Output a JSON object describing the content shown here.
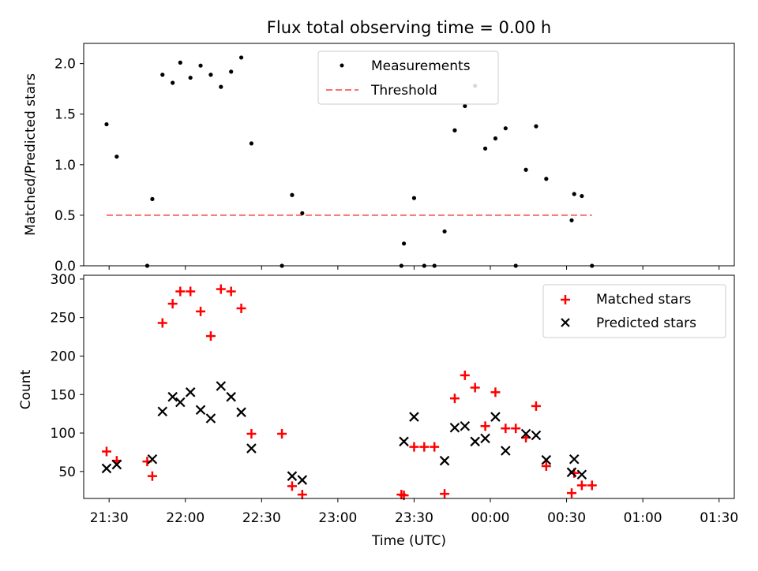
{
  "chart_data": [
    {
      "type": "scatter",
      "title": "Flux total observing time = 0.00 h",
      "ylabel": "Matched/Predicted stars",
      "xlabel": "",
      "xlim": [
        "21:20",
        "01:36"
      ],
      "ylim": [
        0,
        2.2
      ],
      "yticks": [
        0.0,
        0.5,
        1.0,
        1.5,
        2.0
      ],
      "ytick_labels": [
        "0.0",
        "0.5",
        "1.0",
        "1.5",
        "2.0"
      ],
      "legend": "top-center",
      "series": [
        {
          "name": "Measurements",
          "marker": "dot",
          "color": "#000000",
          "points": [
            [
              "21:29",
              1.4
            ],
            [
              "21:33",
              1.08
            ],
            [
              "21:45",
              0.0
            ],
            [
              "21:47",
              0.66
            ],
            [
              "21:51",
              1.89
            ],
            [
              "21:55",
              1.81
            ],
            [
              "21:58",
              2.01
            ],
            [
              "22:02",
              1.86
            ],
            [
              "22:06",
              1.98
            ],
            [
              "22:10",
              1.89
            ],
            [
              "22:14",
              1.77
            ],
            [
              "22:18",
              1.92
            ],
            [
              "22:22",
              2.06
            ],
            [
              "22:26",
              1.21
            ],
            [
              "22:38",
              0.0
            ],
            [
              "22:42",
              0.7
            ],
            [
              "22:46",
              0.52
            ],
            [
              "23:25",
              0.0
            ],
            [
              "23:26",
              0.22
            ],
            [
              "23:30",
              0.67
            ],
            [
              "23:34",
              0.0
            ],
            [
              "23:38",
              0.0
            ],
            [
              "23:42",
              0.34
            ],
            [
              "23:46",
              1.34
            ],
            [
              "23:50",
              1.58
            ],
            [
              "23:54",
              1.78
            ],
            [
              "23:58",
              1.16
            ],
            [
              "00:02",
              1.26
            ],
            [
              "00:06",
              1.36
            ],
            [
              "00:10",
              0.0
            ],
            [
              "00:14",
              0.95
            ],
            [
              "00:18",
              1.38
            ],
            [
              "00:22",
              0.86
            ],
            [
              "00:32",
              0.45
            ],
            [
              "00:33",
              0.71
            ],
            [
              "00:36",
              0.69
            ],
            [
              "00:40",
              0.0
            ]
          ]
        },
        {
          "name": "Threshold",
          "line": "dashed",
          "color": "#f87171",
          "x": [
            "21:29",
            "00:40"
          ],
          "y": [
            0.5,
            0.5
          ]
        }
      ]
    },
    {
      "type": "scatter",
      "title": "",
      "ylabel": "Count",
      "xlabel": "Time (UTC)",
      "xlim": [
        "21:20",
        "01:36"
      ],
      "ylim": [
        15,
        305
      ],
      "yticks": [
        50,
        100,
        150,
        200,
        250,
        300
      ],
      "xticks": [
        "21:30",
        "22:00",
        "22:30",
        "23:00",
        "23:30",
        "00:00",
        "00:30",
        "01:00",
        "01:30"
      ],
      "legend": "top-right",
      "series": [
        {
          "name": "Matched stars",
          "marker": "plus",
          "color": "#ff0000",
          "points": [
            [
              "21:29",
              76
            ],
            [
              "21:33",
              64
            ],
            [
              "21:45",
              63
            ],
            [
              "21:47",
              44
            ],
            [
              "21:51",
              243
            ],
            [
              "21:55",
              268
            ],
            [
              "21:58",
              284
            ],
            [
              "22:02",
              284
            ],
            [
              "22:06",
              258
            ],
            [
              "22:10",
              226
            ],
            [
              "22:14",
              287
            ],
            [
              "22:18",
              284
            ],
            [
              "22:22",
              262
            ],
            [
              "22:26",
              99
            ],
            [
              "22:38",
              99
            ],
            [
              "22:42",
              31
            ],
            [
              "22:46",
              20
            ],
            [
              "23:25",
              20
            ],
            [
              "23:26",
              19
            ],
            [
              "23:30",
              82
            ],
            [
              "23:34",
              82
            ],
            [
              "23:38",
              82
            ],
            [
              "23:42",
              21
            ],
            [
              "23:46",
              145
            ],
            [
              "23:50",
              175
            ],
            [
              "23:54",
              159
            ],
            [
              "23:58",
              109
            ],
            [
              "00:02",
              153
            ],
            [
              "00:06",
              106
            ],
            [
              "00:10",
              106
            ],
            [
              "00:14",
              94
            ],
            [
              "00:18",
              135
            ],
            [
              "00:22",
              57
            ],
            [
              "00:32",
              22
            ],
            [
              "00:33",
              48
            ],
            [
              "00:36",
              32
            ],
            [
              "00:40",
              32
            ]
          ]
        },
        {
          "name": "Predicted stars",
          "marker": "x",
          "color": "#000000",
          "points": [
            [
              "21:29",
              54
            ],
            [
              "21:33",
              59
            ],
            [
              "21:47",
              66
            ],
            [
              "21:51",
              128
            ],
            [
              "21:55",
              147
            ],
            [
              "21:58",
              140
            ],
            [
              "22:02",
              153
            ],
            [
              "22:06",
              130
            ],
            [
              "22:10",
              119
            ],
            [
              "22:14",
              161
            ],
            [
              "22:18",
              147
            ],
            [
              "22:22",
              127
            ],
            [
              "22:26",
              80
            ],
            [
              "22:42",
              44
            ],
            [
              "22:46",
              39
            ],
            [
              "23:26",
              89
            ],
            [
              "23:30",
              121
            ],
            [
              "23:42",
              64
            ],
            [
              "23:46",
              107
            ],
            [
              "23:50",
              109
            ],
            [
              "23:54",
              89
            ],
            [
              "23:58",
              93
            ],
            [
              "00:02",
              121
            ],
            [
              "00:06",
              77
            ],
            [
              "00:14",
              99
            ],
            [
              "00:18",
              97
            ],
            [
              "00:22",
              65
            ],
            [
              "00:32",
              49
            ],
            [
              "00:33",
              66
            ],
            [
              "00:36",
              46
            ]
          ]
        }
      ]
    }
  ]
}
